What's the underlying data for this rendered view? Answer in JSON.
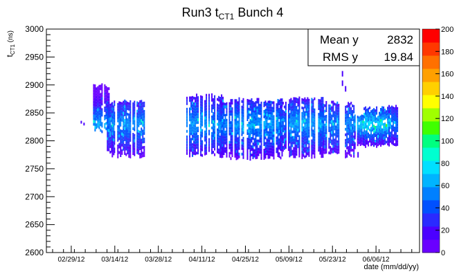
{
  "chart_data": {
    "type": "heatmap",
    "title": "Run3 t",
    "title_sub": "CT1",
    "title_rest": " Bunch 4",
    "ylabel_main": "t",
    "ylabel_sub": "CT1",
    "ylabel_unit": " (ns)",
    "xlabel": "date (mm/dd/yy)",
    "ylim": [
      2600,
      3000
    ],
    "y_ticks": [
      2600,
      2650,
      2700,
      2750,
      2800,
      2850,
      2900,
      2950,
      3000
    ],
    "x_range": [
      "02/21/12",
      "06/20/12"
    ],
    "x_ticks": [
      "02/29/12",
      "03/14/12",
      "03/28/12",
      "04/11/12",
      "04/25/12",
      "05/09/12",
      "05/23/12",
      "06/06/12"
    ],
    "colorbar": {
      "min": 0,
      "max": 200,
      "ticks": [
        0,
        20,
        40,
        60,
        80,
        100,
        120,
        140,
        160,
        180,
        200
      ]
    },
    "stats": [
      {
        "label": "Mean y",
        "value": "2832"
      },
      {
        "label": "RMS y",
        "value": "19.84"
      }
    ],
    "bands": [
      {
        "start": "03/03/12",
        "end": "03/03/12",
        "y_low": 2827,
        "y_high": 2838,
        "density": 0.1
      },
      {
        "start": "03/07/12",
        "end": "03/11/12",
        "y_low": 2817,
        "y_high": 2903,
        "density": 0.45
      },
      {
        "start": "03/11/12",
        "end": "03/13/12",
        "y_low": 2778,
        "y_high": 2873,
        "density": 0.35
      },
      {
        "start": "03/13/12",
        "end": "03/23/12",
        "y_low": 2772,
        "y_high": 2875,
        "density": 0.4
      },
      {
        "start": "04/06/12",
        "end": "04/17/12",
        "y_low": 2772,
        "y_high": 2885,
        "density": 0.42
      },
      {
        "start": "04/17/12",
        "end": "04/21/12",
        "y_low": 2768,
        "y_high": 2876,
        "density": 0.35
      },
      {
        "start": "04/21/12",
        "end": "05/06/12",
        "y_low": 2768,
        "y_high": 2878,
        "density": 0.45
      },
      {
        "start": "05/06/12",
        "end": "05/08/12",
        "y_low": 2780,
        "y_high": 2870,
        "density": 0.3
      },
      {
        "start": "05/09/12",
        "end": "05/19/12",
        "y_low": 2770,
        "y_high": 2880,
        "density": 0.45
      },
      {
        "start": "05/19/12",
        "end": "05/24/12",
        "y_low": 2775,
        "y_high": 2872,
        "density": 0.38
      },
      {
        "start": "05/27/12",
        "end": "05/29/12",
        "y_low": 2770,
        "y_high": 2870,
        "density": 0.4
      },
      {
        "start": "05/30/12",
        "end": "06/02/12",
        "y_low": 2788,
        "y_high": 2850,
        "density": 0.55
      },
      {
        "start": "06/02/12",
        "end": "06/10/12",
        "y_low": 2790,
        "y_high": 2862,
        "density": 0.6
      },
      {
        "start": "06/10/12",
        "end": "06/12/12",
        "y_low": 2790,
        "y_high": 2865,
        "density": 0.35
      }
    ],
    "sparse_points": [
      {
        "date": "05/26/12",
        "y": 2920
      },
      {
        "date": "05/26/12",
        "y": 2903
      },
      {
        "date": "05/27/12",
        "y": 2893
      },
      {
        "date": "05/30/12",
        "y": 2812
      },
      {
        "date": "05/30/12",
        "y": 2790
      },
      {
        "date": "05/31/12",
        "y": 2775
      }
    ]
  }
}
